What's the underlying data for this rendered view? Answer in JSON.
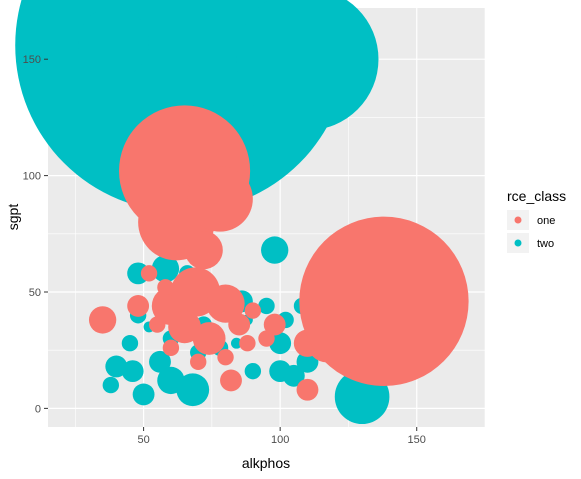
{
  "chart_data": {
    "type": "scatter",
    "xlabel": "alkphos",
    "ylabel": "sgpt",
    "xlim": [
      15,
      175
    ],
    "ylim": [
      -8,
      172
    ],
    "x_ticks": [
      50,
      100,
      150
    ],
    "y_ticks": [
      0,
      50,
      100,
      150
    ],
    "x_tick_labels": [
      "50",
      "100",
      "150"
    ],
    "y_tick_labels": [
      "0",
      "50",
      "100",
      "150"
    ],
    "grid": true,
    "legend": {
      "title": "rce_class",
      "placement": "right",
      "entries": [
        {
          "label": "one",
          "color": "#F8766D"
        },
        {
          "label": "two",
          "color": "#00BFC4"
        }
      ]
    },
    "size_note": "point size encodes a variable not shown in the legend",
    "series": [
      {
        "name": "two",
        "color": "#00BFC4",
        "points": [
          {
            "x": 64,
            "y": 156,
            "r": 61
          },
          {
            "x": 39,
            "y": 157,
            "r": 13
          },
          {
            "x": 110,
            "y": 150,
            "r": 26
          },
          {
            "x": 98,
            "y": 68,
            "r": 5
          },
          {
            "x": 48,
            "y": 58,
            "r": 4
          },
          {
            "x": 58,
            "y": 60,
            "r": 5
          },
          {
            "x": 66,
            "y": 58,
            "r": 3
          },
          {
            "x": 48,
            "y": 40,
            "r": 3
          },
          {
            "x": 52,
            "y": 35,
            "r": 2
          },
          {
            "x": 72,
            "y": 36,
            "r": 3
          },
          {
            "x": 86,
            "y": 46,
            "r": 4
          },
          {
            "x": 95,
            "y": 44,
            "r": 3
          },
          {
            "x": 102,
            "y": 38,
            "r": 3
          },
          {
            "x": 88,
            "y": 38,
            "r": 2
          },
          {
            "x": 60,
            "y": 30,
            "r": 3
          },
          {
            "x": 78,
            "y": 26,
            "r": 3
          },
          {
            "x": 84,
            "y": 28,
            "r": 2
          },
          {
            "x": 100,
            "y": 28,
            "r": 4
          },
          {
            "x": 110,
            "y": 20,
            "r": 4
          },
          {
            "x": 40,
            "y": 18,
            "r": 4
          },
          {
            "x": 46,
            "y": 16,
            "r": 4
          },
          {
            "x": 60,
            "y": 12,
            "r": 5
          },
          {
            "x": 68,
            "y": 8,
            "r": 6
          },
          {
            "x": 90,
            "y": 16,
            "r": 3
          },
          {
            "x": 100,
            "y": 16,
            "r": 4
          },
          {
            "x": 105,
            "y": 14,
            "r": 4
          },
          {
            "x": 50,
            "y": 6,
            "r": 4
          },
          {
            "x": 70,
            "y": 24,
            "r": 3
          },
          {
            "x": 45,
            "y": 28,
            "r": 3
          },
          {
            "x": 56,
            "y": 20,
            "r": 4
          },
          {
            "x": 38,
            "y": 10,
            "r": 3
          },
          {
            "x": 130,
            "y": 5,
            "r": 10
          },
          {
            "x": 108,
            "y": 44,
            "r": 3
          }
        ]
      },
      {
        "name": "one",
        "color": "#F8766D",
        "points": [
          {
            "x": 65,
            "y": 102,
            "r": 24
          },
          {
            "x": 62,
            "y": 80,
            "r": 14
          },
          {
            "x": 78,
            "y": 90,
            "r": 12
          },
          {
            "x": 72,
            "y": 68,
            "r": 7
          },
          {
            "x": 60,
            "y": 44,
            "r": 7
          },
          {
            "x": 69,
            "y": 50,
            "r": 9
          },
          {
            "x": 80,
            "y": 45,
            "r": 7
          },
          {
            "x": 65,
            "y": 35,
            "r": 6
          },
          {
            "x": 74,
            "y": 30,
            "r": 6
          },
          {
            "x": 48,
            "y": 44,
            "r": 4
          },
          {
            "x": 52,
            "y": 58,
            "r": 3
          },
          {
            "x": 55,
            "y": 36,
            "r": 3
          },
          {
            "x": 35,
            "y": 38,
            "r": 5
          },
          {
            "x": 85,
            "y": 36,
            "r": 4
          },
          {
            "x": 90,
            "y": 42,
            "r": 3
          },
          {
            "x": 88,
            "y": 28,
            "r": 3
          },
          {
            "x": 98,
            "y": 36,
            "r": 4
          },
          {
            "x": 112,
            "y": 38,
            "r": 3
          },
          {
            "x": 110,
            "y": 28,
            "r": 5
          },
          {
            "x": 117,
            "y": 28,
            "r": 7
          },
          {
            "x": 110,
            "y": 8,
            "r": 4
          },
          {
            "x": 82,
            "y": 12,
            "r": 4
          },
          {
            "x": 70,
            "y": 20,
            "r": 3
          },
          {
            "x": 60,
            "y": 26,
            "r": 3
          },
          {
            "x": 80,
            "y": 22,
            "r": 3
          },
          {
            "x": 95,
            "y": 30,
            "r": 3
          },
          {
            "x": 58,
            "y": 52,
            "r": 3
          },
          {
            "x": 138,
            "y": 46,
            "r": 31
          }
        ]
      }
    ]
  }
}
